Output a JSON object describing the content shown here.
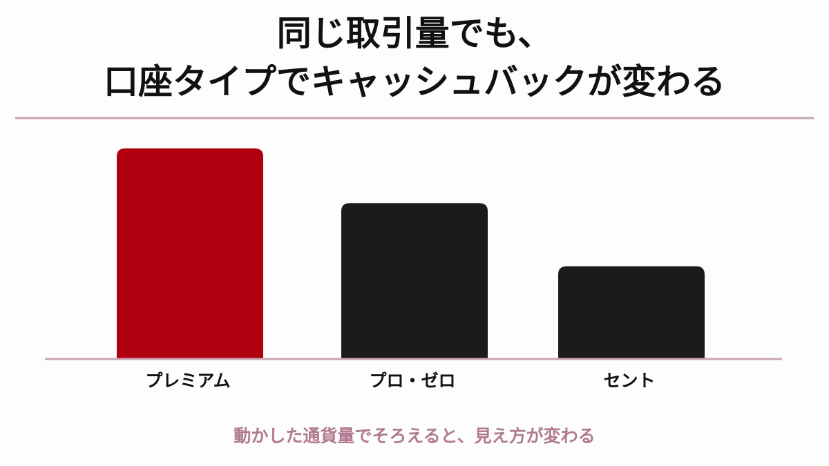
{
  "chart_data": {
    "type": "bar",
    "title_lines": [
      "同じ取引量でも、",
      "口座タイプでキャッシュバックが変わる"
    ],
    "categories": [
      "プレミアム",
      "プロ・ゼロ",
      "セント"
    ],
    "values": [
      100,
      74,
      44
    ],
    "colors": [
      "#b0000f",
      "#1b1a1c",
      "#1b1a1c"
    ],
    "caption": "動かした通貨量でそろえると、見え方が変わる"
  }
}
